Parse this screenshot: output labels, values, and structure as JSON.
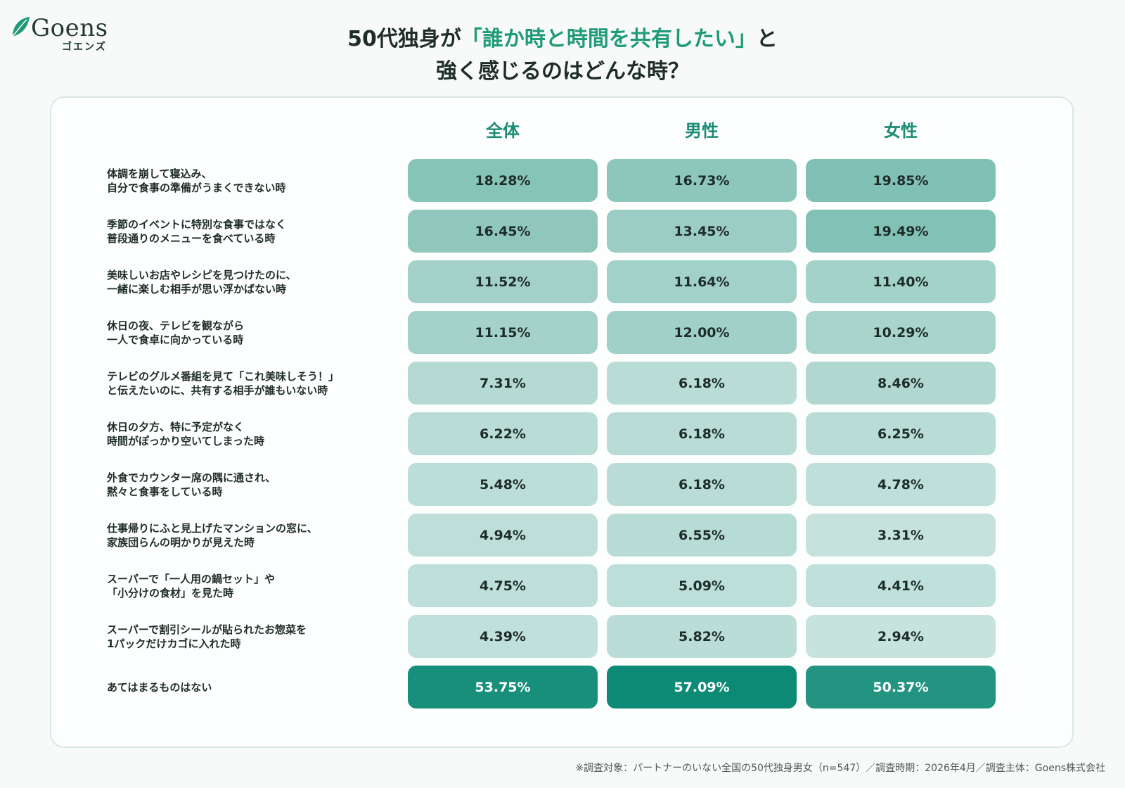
{
  "logo": {
    "name": "Goens",
    "sub": "ゴエンズ",
    "icon": "leaf-icon",
    "color": "#1f9b78"
  },
  "title": {
    "line1_prefix": "50代独身が",
    "line1_highlight": "「誰か時と時間を共有したい」",
    "line1_suffix": "と",
    "line2": "強く感じるのはどんな時？"
  },
  "colors": {
    "accent": "#1f9b78",
    "header": "#1a8c74"
  },
  "chart_data": {
    "type": "table",
    "columns": [
      "全体",
      "男性",
      "女性"
    ],
    "rows": [
      {
        "label": [
          "体調を崩して寝込み、",
          "自分で食事の準備がうまくできない時"
        ],
        "values": [
          18.28,
          16.73,
          19.85
        ]
      },
      {
        "label": [
          "季節のイベントに特別な食事ではなく",
          "普段通りのメニューを食べている時"
        ],
        "values": [
          16.45,
          13.45,
          19.49
        ]
      },
      {
        "label": [
          "美味しいお店やレシピを見つけたのに、",
          "一緒に楽しむ相手が思い浮かばない時"
        ],
        "values": [
          11.52,
          11.64,
          11.4
        ]
      },
      {
        "label": [
          "休日の夜、テレビを観ながら",
          "一人で食卓に向かっている時"
        ],
        "values": [
          11.15,
          12.0,
          10.29
        ]
      },
      {
        "label": [
          "テレビのグルメ番組を見て「これ美味しそう！」",
          "と伝えたいのに、共有する相手が誰もいない時"
        ],
        "values": [
          7.31,
          6.18,
          8.46
        ]
      },
      {
        "label": [
          "休日の夕方、特に予定がなく",
          "時間がぽっかり空いてしまった時"
        ],
        "values": [
          6.22,
          6.18,
          6.25
        ]
      },
      {
        "label": [
          "外食でカウンター席の隅に通され、",
          "黙々と食事をしている時"
        ],
        "values": [
          5.48,
          6.18,
          4.78
        ]
      },
      {
        "label": [
          "仕事帰りにふと見上げたマンションの窓に、",
          "家族団らんの明かりが見えた時"
        ],
        "values": [
          4.94,
          6.55,
          3.31
        ]
      },
      {
        "label": [
          "スーパーで「一人用の鍋セット」や",
          "「小分けの食材」を見た時"
        ],
        "values": [
          4.75,
          5.09,
          4.41
        ]
      },
      {
        "label": [
          "スーパーで割引シールが貼られたお惣菜を",
          "1パックだけカゴに入れた時"
        ],
        "values": [
          4.39,
          5.82,
          2.94
        ]
      },
      {
        "label": [
          "あてはまるものはない"
        ],
        "values": [
          53.75,
          57.09,
          50.37
        ]
      }
    ],
    "unit": "%"
  },
  "footnote": "※調査対象：パートナーのいない全国の50代独身男女（n=547）／調査時期：2026年4月／調査主体：Goens株式会社"
}
